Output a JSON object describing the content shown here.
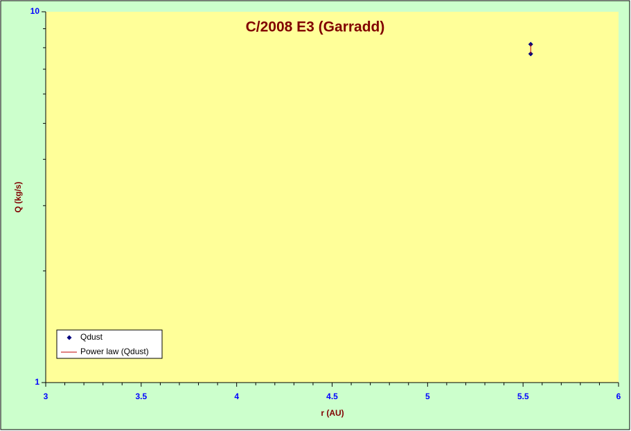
{
  "chart_data": {
    "type": "scatter",
    "title": "C/2008 E3 (Garradd)",
    "x_label": "r (AU)",
    "y_label": "Q (kg/s)",
    "xlim": [
      3,
      6
    ],
    "xticks": [
      3,
      3.5,
      4,
      4.5,
      5,
      5.5,
      6
    ],
    "xminorticks": [
      3.1,
      3.2,
      3.3,
      3.4,
      3.6,
      3.7,
      3.8,
      3.9,
      4.1,
      4.2,
      4.3,
      4.4,
      4.6,
      4.7,
      4.8,
      4.9,
      5.1,
      5.2,
      5.3,
      5.4,
      5.6,
      5.7,
      5.8,
      5.9
    ],
    "ylim": [
      1,
      10
    ],
    "yticks": [
      1,
      10
    ],
    "yminorticks": [
      2,
      3,
      4,
      5,
      6,
      7,
      8,
      9
    ],
    "log_y": true,
    "legend": "bottom-left",
    "series": [
      {
        "name": "Qdust",
        "color": "#000080",
        "marker": "diamond",
        "x": [
          5.54,
          5.54
        ],
        "values": [
          8.17,
          7.7
        ]
      },
      {
        "name": "Power law (Qdust)",
        "color": "#c00000",
        "marker": "line",
        "x": [
          5.54,
          5.54
        ],
        "values": [
          7.7,
          8.17
        ]
      }
    ]
  }
}
